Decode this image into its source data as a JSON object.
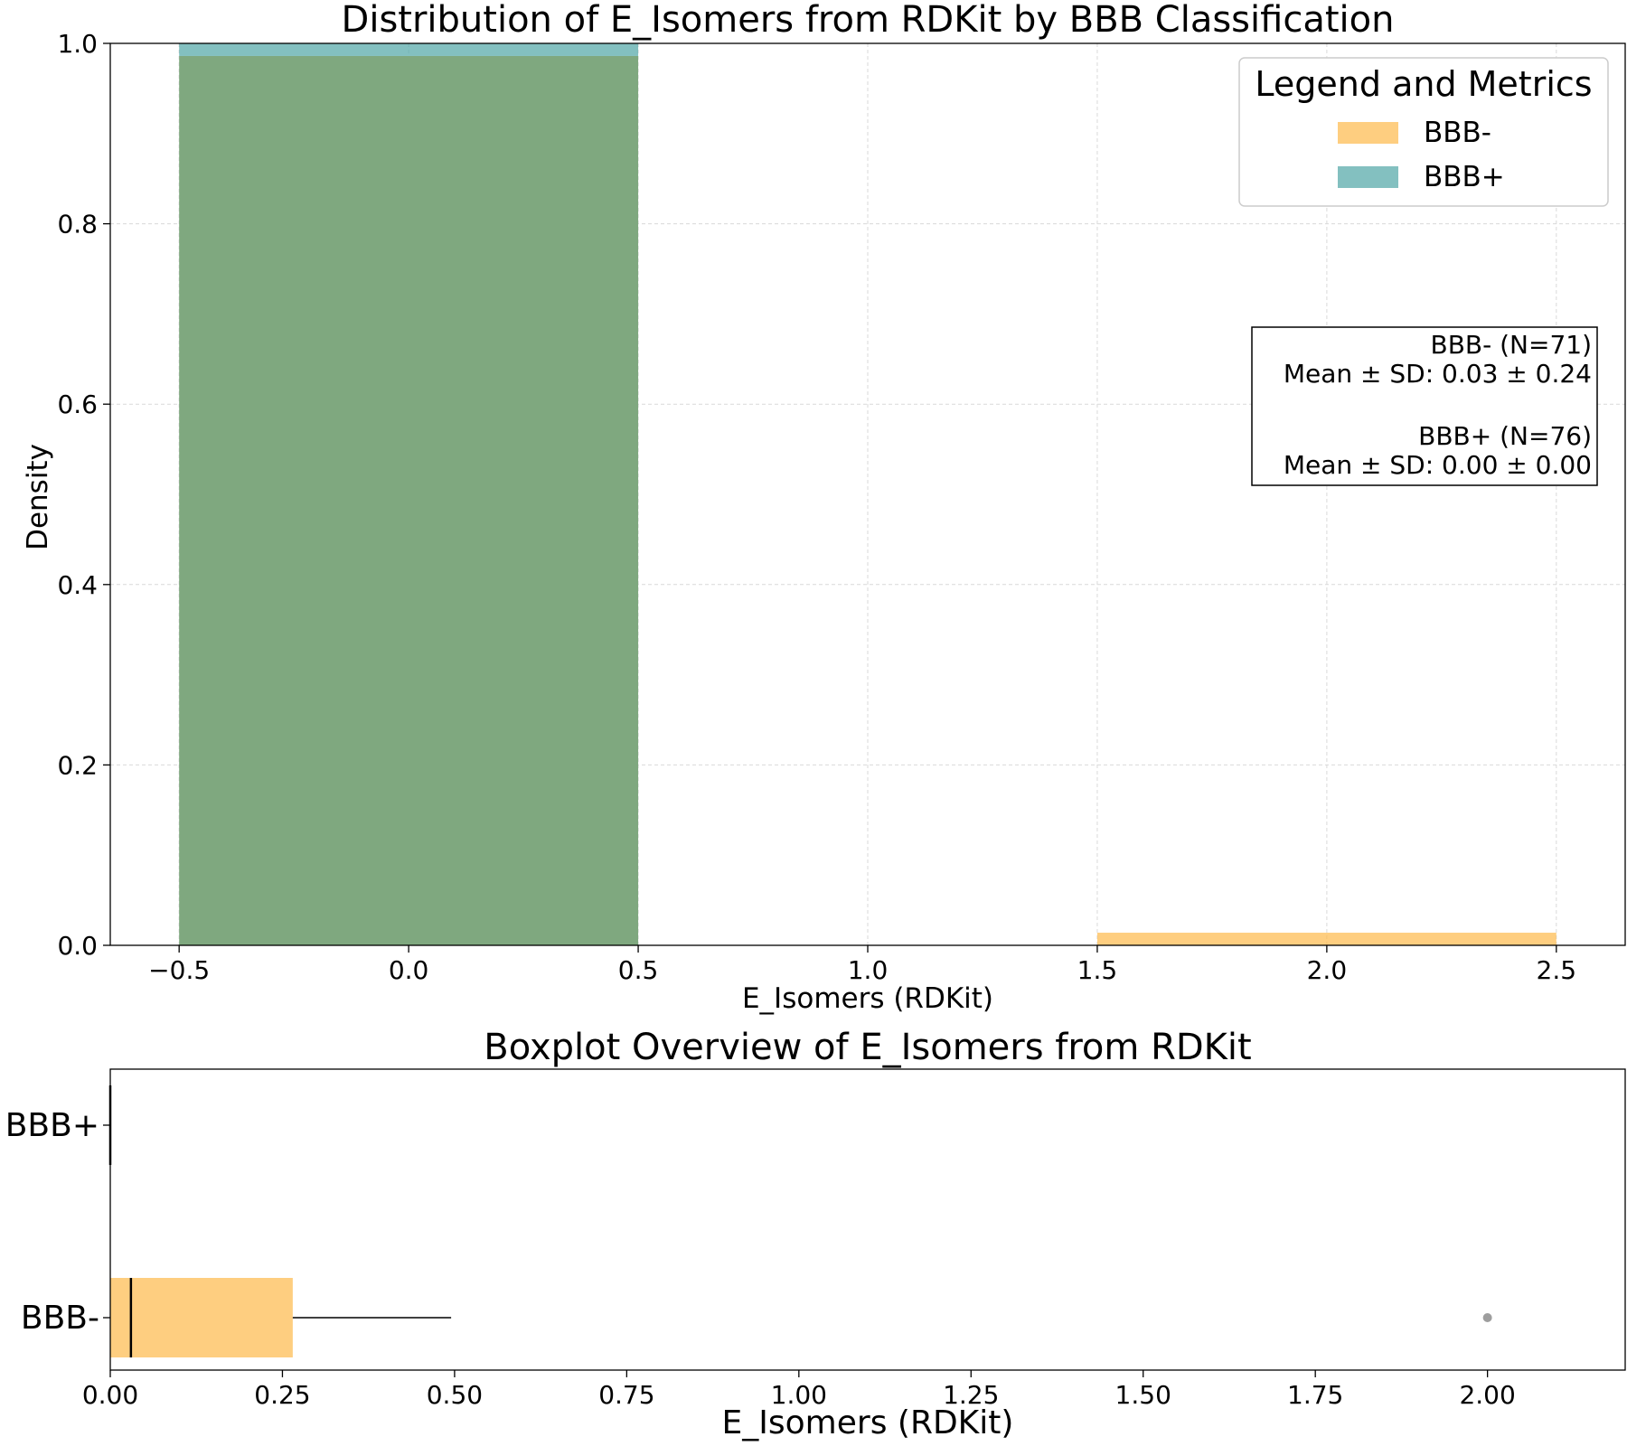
{
  "colors": {
    "bbb_minus": "#fdb94a",
    "bbb_plus": "#4ea5a5",
    "overlap": "#7fa87f",
    "outlier": "#9e9e9e"
  },
  "chart_data": [
    {
      "type": "histogram",
      "title": "Distribution of E_Isomers from RDKit by BBB Classification",
      "xlabel": "E_Isomers (RDKit)",
      "ylabel": "Density",
      "xlim": [
        -0.65,
        2.65
      ],
      "ylim": [
        0,
        1.0
      ],
      "xticks": [
        -0.5,
        0.0,
        0.5,
        1.0,
        1.5,
        2.0,
        2.5
      ],
      "xtick_labels": [
        "−0.5",
        "0.0",
        "0.5",
        "1.0",
        "1.5",
        "2.0",
        "2.5"
      ],
      "yticks": [
        0.0,
        0.2,
        0.4,
        0.6,
        0.8,
        1.0
      ],
      "ytick_labels": [
        "0.0",
        "0.2",
        "0.4",
        "0.6",
        "0.8",
        "1.0"
      ],
      "grid": true,
      "series": [
        {
          "name": "BBB-",
          "bins": [
            {
              "x0": -0.5,
              "x1": 0.5,
              "density": 0.986
            },
            {
              "x0": 1.5,
              "x1": 2.5,
              "density": 0.014
            }
          ]
        },
        {
          "name": "BBB+",
          "bins": [
            {
              "x0": -0.5,
              "x1": 0.5,
              "density": 1.0
            }
          ]
        }
      ],
      "legend": {
        "title": "Legend and Metrics",
        "location": "top-right",
        "entries": [
          "BBB-",
          "BBB+"
        ]
      },
      "metrics_box": {
        "location": "right",
        "lines": [
          "BBB- (N=71)",
          "Mean ± SD: 0.03 ± 0.24",
          "",
          "BBB+ (N=76)",
          "Mean ± SD: 0.00 ± 0.00"
        ]
      }
    },
    {
      "type": "boxplot",
      "title": "Boxplot Overview of E_Isomers from RDKit",
      "xlabel": "E_Isomers (RDKit)",
      "xlim": [
        0,
        2.2
      ],
      "xticks": [
        0.0,
        0.25,
        0.5,
        0.75,
        1.0,
        1.25,
        1.5,
        1.75,
        2.0
      ],
      "xtick_labels": [
        "0.00",
        "0.25",
        "0.50",
        "0.75",
        "1.00",
        "1.25",
        "1.50",
        "1.75",
        "2.00"
      ],
      "categories": [
        "BBB+",
        "BBB-"
      ],
      "boxes": [
        {
          "name": "BBB+",
          "q1": 0.0,
          "q3": 0.0,
          "median": 0.0,
          "whisker_low": 0.0,
          "whisker_high": 0.0,
          "outliers": []
        },
        {
          "name": "BBB-",
          "q1": 0.0,
          "q3": 0.265,
          "median": 0.03,
          "whisker_low": 0.0,
          "whisker_high": 0.495,
          "outliers": [
            2.0
          ]
        }
      ]
    }
  ]
}
